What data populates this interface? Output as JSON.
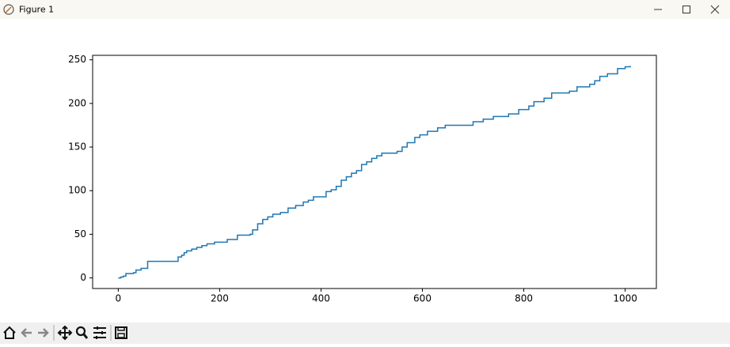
{
  "window": {
    "title": "Figure 1"
  },
  "chart_data": {
    "type": "line",
    "x": [
      0,
      5,
      5,
      10,
      10,
      15,
      15,
      30,
      30,
      35,
      35,
      45,
      45,
      58,
      58,
      118,
      118,
      125,
      125,
      130,
      130,
      135,
      135,
      145,
      145,
      155,
      155,
      165,
      165,
      175,
      175,
      190,
      190,
      215,
      215,
      235,
      235,
      260,
      260,
      265,
      265,
      275,
      275,
      285,
      285,
      295,
      295,
      305,
      305,
      320,
      320,
      335,
      335,
      350,
      350,
      365,
      365,
      375,
      375,
      385,
      385,
      410,
      410,
      420,
      420,
      430,
      430,
      440,
      440,
      450,
      450,
      460,
      460,
      470,
      470,
      480,
      480,
      490,
      490,
      500,
      500,
      510,
      510,
      520,
      520,
      550,
      550,
      560,
      560,
      570,
      570,
      585,
      585,
      595,
      595,
      610,
      610,
      630,
      630,
      645,
      645,
      700,
      700,
      720,
      720,
      740,
      740,
      770,
      770,
      790,
      790,
      810,
      810,
      820,
      820,
      840,
      840,
      855,
      855,
      890,
      890,
      905,
      905,
      930,
      930,
      940,
      940,
      950,
      950,
      965,
      965,
      985,
      985,
      1000,
      1000,
      1010,
      1010
    ],
    "series": [
      {
        "color": "#1f77b4",
        "values": [
          0,
          0,
          1,
          1,
          2,
          2,
          5,
          5,
          6,
          6,
          9,
          9,
          11,
          11,
          19,
          19,
          24,
          24,
          26,
          26,
          29,
          29,
          31,
          31,
          33,
          33,
          35,
          35,
          37,
          37,
          39,
          39,
          41,
          41,
          44,
          44,
          49,
          49,
          50,
          50,
          55,
          55,
          62,
          62,
          67,
          67,
          70,
          70,
          73,
          73,
          75,
          75,
          80,
          80,
          83,
          83,
          87,
          87,
          89,
          89,
          93,
          93,
          99,
          99,
          101,
          101,
          105,
          105,
          112,
          112,
          116,
          116,
          120,
          120,
          123,
          123,
          130,
          130,
          133,
          133,
          137,
          137,
          140,
          140,
          143,
          143,
          145,
          145,
          150,
          150,
          155,
          155,
          161,
          161,
          164,
          164,
          168,
          168,
          172,
          172,
          175,
          175,
          179,
          179,
          182,
          182,
          185,
          185,
          188,
          188,
          193,
          193,
          197,
          197,
          202,
          202,
          206,
          206,
          212,
          212,
          214,
          214,
          219,
          219,
          222,
          222,
          226,
          226,
          231,
          231,
          234,
          234,
          240,
          240,
          242,
          242,
          243
        ]
      }
    ],
    "xlim": [
      -50.55,
      1061.55
    ],
    "xticks": [
      0,
      200,
      400,
      600,
      800,
      1000
    ],
    "ylim": [
      -12.15,
      255.15
    ],
    "yticks": [
      0,
      50,
      100,
      150,
      200,
      250
    ],
    "grid": false
  }
}
